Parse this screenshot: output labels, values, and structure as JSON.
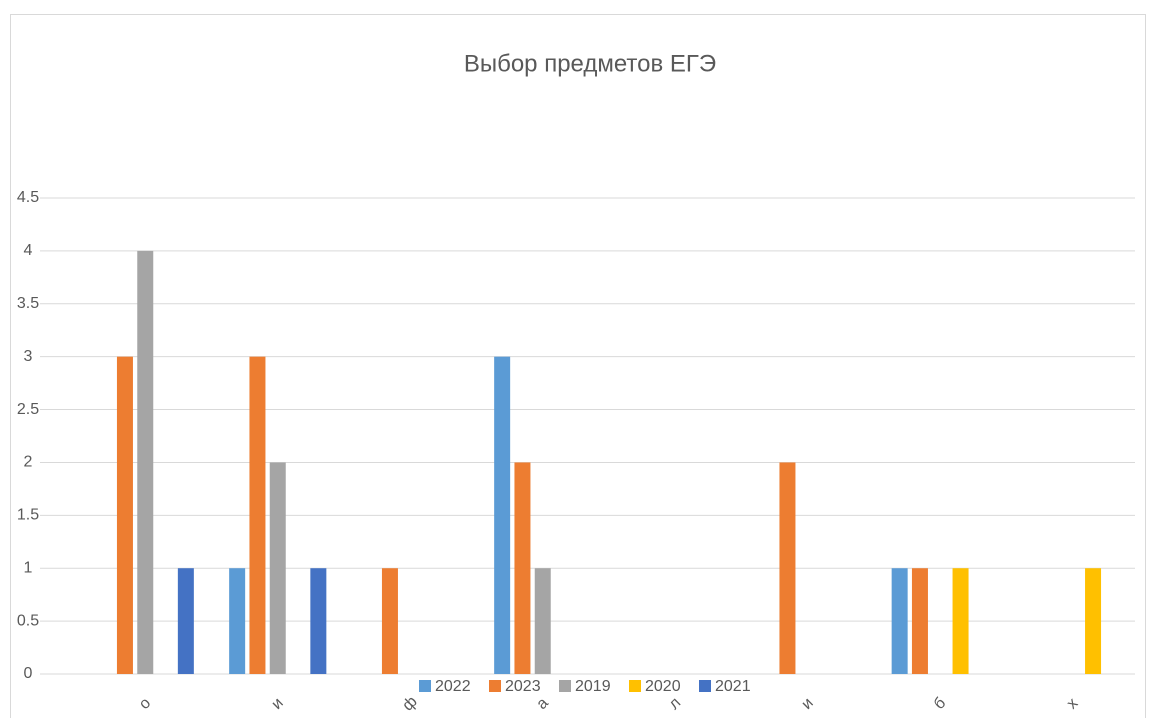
{
  "chart_data": {
    "type": "bar",
    "title": "Выбор предметов ЕГЭ",
    "categories": [
      "о",
      "и",
      "ф",
      "а",
      "л",
      "и",
      "б",
      "х"
    ],
    "series": [
      {
        "name": "2022",
        "color": "#5b9bd5",
        "values": [
          0,
          1,
          0,
          3,
          0,
          0,
          1,
          0
        ]
      },
      {
        "name": "2023",
        "color": "#ed7d31",
        "values": [
          3,
          3,
          1,
          2,
          0,
          2,
          1,
          0
        ]
      },
      {
        "name": "2019",
        "color": "#a5a5a5",
        "values": [
          4,
          2,
          0,
          1,
          0,
          0,
          0,
          0
        ]
      },
      {
        "name": "2020",
        "color": "#ffc000",
        "values": [
          0,
          0,
          0,
          0,
          0,
          0,
          1,
          1
        ]
      },
      {
        "name": "2021",
        "color": "#4472c4",
        "values": [
          1,
          1,
          0,
          0,
          0,
          0,
          0,
          0
        ]
      }
    ],
    "ylim": [
      0,
      4.5
    ],
    "yticks": [
      0,
      0.5,
      1,
      1.5,
      2,
      2.5,
      3,
      3.5,
      4,
      4.5
    ],
    "grid": true,
    "legend": "bottom"
  }
}
